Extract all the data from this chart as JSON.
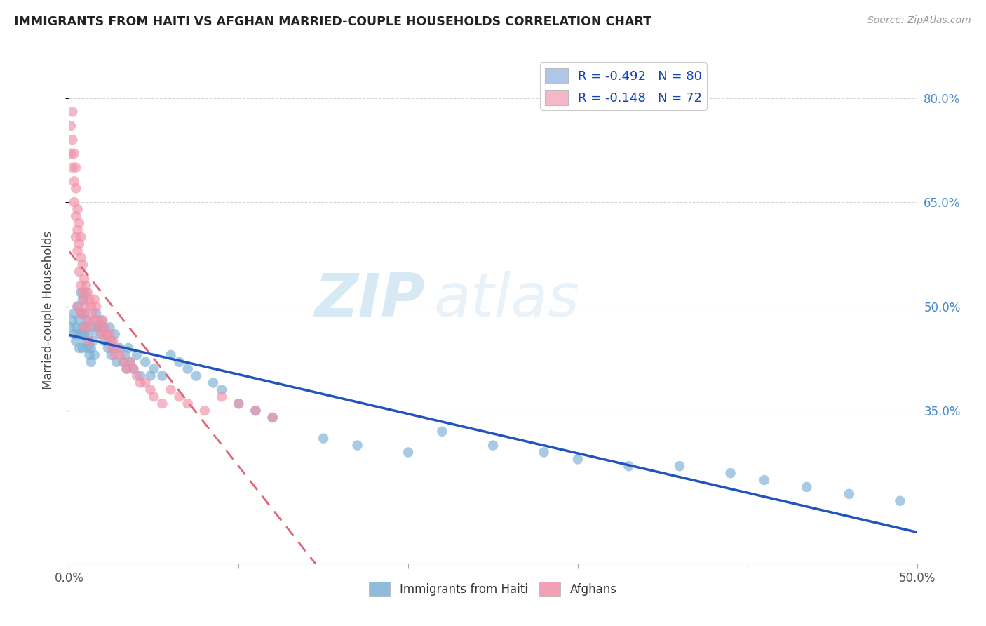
{
  "title": "IMMIGRANTS FROM HAITI VS AFGHAN MARRIED-COUPLE HOUSEHOLDS CORRELATION CHART",
  "source": "Source: ZipAtlas.com",
  "ylabel": "Married-couple Households",
  "right_yticks": [
    "80.0%",
    "65.0%",
    "50.0%",
    "35.0%"
  ],
  "right_ytick_vals": [
    0.8,
    0.65,
    0.5,
    0.35
  ],
  "legend_label1": "R = -0.492   N = 80",
  "legend_label2": "R = -0.148   N = 72",
  "legend_color1": "#aec6e8",
  "legend_color2": "#f4b8c8",
  "scatter_color1": "#7aafd4",
  "scatter_color2": "#f090a8",
  "line_color1": "#2255bb",
  "line_color2": "#dd6677",
  "watermark_zip": "ZIP",
  "watermark_atlas": "atlas",
  "xlim": [
    0.0,
    0.5
  ],
  "ylim": [
    0.13,
    0.86
  ],
  "haiti_x": [
    0.001,
    0.002,
    0.003,
    0.003,
    0.004,
    0.004,
    0.005,
    0.005,
    0.006,
    0.006,
    0.007,
    0.007,
    0.007,
    0.008,
    0.008,
    0.008,
    0.009,
    0.009,
    0.01,
    0.01,
    0.01,
    0.011,
    0.011,
    0.012,
    0.012,
    0.013,
    0.013,
    0.014,
    0.015,
    0.015,
    0.016,
    0.017,
    0.018,
    0.019,
    0.02,
    0.021,
    0.022,
    0.023,
    0.024,
    0.025,
    0.025,
    0.026,
    0.027,
    0.028,
    0.03,
    0.032,
    0.033,
    0.034,
    0.035,
    0.036,
    0.038,
    0.04,
    0.042,
    0.045,
    0.048,
    0.05,
    0.055,
    0.06,
    0.065,
    0.07,
    0.075,
    0.085,
    0.09,
    0.1,
    0.11,
    0.12,
    0.15,
    0.17,
    0.2,
    0.22,
    0.25,
    0.28,
    0.3,
    0.33,
    0.36,
    0.39,
    0.41,
    0.435,
    0.46,
    0.49
  ],
  "haiti_y": [
    0.47,
    0.48,
    0.46,
    0.49,
    0.47,
    0.45,
    0.46,
    0.5,
    0.48,
    0.44,
    0.46,
    0.49,
    0.52,
    0.47,
    0.51,
    0.44,
    0.46,
    0.49,
    0.47,
    0.45,
    0.52,
    0.48,
    0.44,
    0.43,
    0.46,
    0.44,
    0.42,
    0.45,
    0.47,
    0.43,
    0.49,
    0.47,
    0.46,
    0.48,
    0.47,
    0.45,
    0.46,
    0.44,
    0.47,
    0.45,
    0.43,
    0.44,
    0.46,
    0.42,
    0.44,
    0.42,
    0.43,
    0.41,
    0.44,
    0.42,
    0.41,
    0.43,
    0.4,
    0.42,
    0.4,
    0.41,
    0.4,
    0.43,
    0.42,
    0.41,
    0.4,
    0.39,
    0.38,
    0.36,
    0.35,
    0.34,
    0.31,
    0.3,
    0.29,
    0.32,
    0.3,
    0.29,
    0.28,
    0.27,
    0.27,
    0.26,
    0.25,
    0.24,
    0.23,
    0.22
  ],
  "afghan_x": [
    0.001,
    0.001,
    0.002,
    0.002,
    0.002,
    0.003,
    0.003,
    0.003,
    0.004,
    0.004,
    0.004,
    0.004,
    0.005,
    0.005,
    0.005,
    0.006,
    0.006,
    0.006,
    0.007,
    0.007,
    0.007,
    0.008,
    0.008,
    0.008,
    0.009,
    0.009,
    0.01,
    0.01,
    0.011,
    0.011,
    0.012,
    0.012,
    0.013,
    0.014,
    0.015,
    0.015,
    0.016,
    0.017,
    0.018,
    0.019,
    0.02,
    0.021,
    0.022,
    0.023,
    0.024,
    0.025,
    0.026,
    0.027,
    0.028,
    0.03,
    0.032,
    0.034,
    0.036,
    0.038,
    0.04,
    0.042,
    0.045,
    0.048,
    0.05,
    0.055,
    0.06,
    0.065,
    0.07,
    0.08,
    0.09,
    0.1,
    0.11,
    0.12,
    0.005,
    0.007,
    0.009,
    0.012
  ],
  "afghan_y": [
    0.76,
    0.72,
    0.78,
    0.74,
    0.7,
    0.72,
    0.68,
    0.65,
    0.67,
    0.63,
    0.7,
    0.6,
    0.64,
    0.61,
    0.58,
    0.62,
    0.59,
    0.55,
    0.6,
    0.57,
    0.53,
    0.56,
    0.52,
    0.49,
    0.54,
    0.51,
    0.53,
    0.5,
    0.52,
    0.48,
    0.51,
    0.47,
    0.5,
    0.49,
    0.51,
    0.48,
    0.5,
    0.48,
    0.47,
    0.46,
    0.48,
    0.47,
    0.46,
    0.45,
    0.46,
    0.44,
    0.45,
    0.43,
    0.44,
    0.43,
    0.42,
    0.41,
    0.42,
    0.41,
    0.4,
    0.39,
    0.39,
    0.38,
    0.37,
    0.36,
    0.38,
    0.37,
    0.36,
    0.35,
    0.37,
    0.36,
    0.35,
    0.34,
    0.5,
    0.49,
    0.47,
    0.45
  ]
}
